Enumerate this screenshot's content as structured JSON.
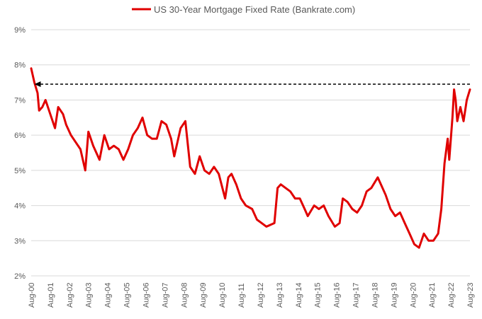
{
  "chart_data": {
    "type": "line",
    "title": "",
    "xlabel": "",
    "ylabel": "",
    "legend": {
      "position": "top-center"
    },
    "grid": {
      "horizontal": true,
      "vertical": false
    },
    "ylim": [
      2,
      9
    ],
    "y_ticks": [
      "2%",
      "3%",
      "4%",
      "5%",
      "6%",
      "7%",
      "8%",
      "9%"
    ],
    "x_range": [
      "2000-08",
      "2023-08"
    ],
    "x_ticks": [
      "Aug-00",
      "Aug-01",
      "Aug-02",
      "Aug-03",
      "Aug-04",
      "Aug-05",
      "Aug-06",
      "Aug-07",
      "Aug-08",
      "Aug-09",
      "Aug-10",
      "Aug-11",
      "Aug-12",
      "Aug-13",
      "Aug-14",
      "Aug-15",
      "Aug-16",
      "Aug-17",
      "Aug-18",
      "Aug-19",
      "Aug-20",
      "Aug-21",
      "Aug-22",
      "Aug-23"
    ],
    "series": [
      {
        "name": "US 30-Year Mortgage Fixed Rate (Bankrate.com)",
        "color": "#e00000",
        "points": [
          [
            "2000-08",
            7.9
          ],
          [
            "2000-10",
            7.5
          ],
          [
            "2000-12",
            7.2
          ],
          [
            "2001-01",
            6.7
          ],
          [
            "2001-03",
            6.8
          ],
          [
            "2001-05",
            7.0
          ],
          [
            "2001-08",
            6.6
          ],
          [
            "2001-11",
            6.2
          ],
          [
            "2002-01",
            6.8
          ],
          [
            "2002-04",
            6.6
          ],
          [
            "2002-06",
            6.3
          ],
          [
            "2002-09",
            6.0
          ],
          [
            "2002-12",
            5.8
          ],
          [
            "2003-03",
            5.6
          ],
          [
            "2003-06",
            5.0
          ],
          [
            "2003-08",
            6.1
          ],
          [
            "2003-11",
            5.7
          ],
          [
            "2004-03",
            5.3
          ],
          [
            "2004-06",
            6.0
          ],
          [
            "2004-09",
            5.6
          ],
          [
            "2004-12",
            5.7
          ],
          [
            "2005-03",
            5.6
          ],
          [
            "2005-06",
            5.3
          ],
          [
            "2005-09",
            5.6
          ],
          [
            "2005-12",
            6.0
          ],
          [
            "2006-03",
            6.2
          ],
          [
            "2006-06",
            6.5
          ],
          [
            "2006-09",
            6.0
          ],
          [
            "2006-12",
            5.9
          ],
          [
            "2007-03",
            5.9
          ],
          [
            "2007-06",
            6.4
          ],
          [
            "2007-09",
            6.3
          ],
          [
            "2007-12",
            5.9
          ],
          [
            "2008-02",
            5.4
          ],
          [
            "2008-06",
            6.2
          ],
          [
            "2008-09",
            6.4
          ],
          [
            "2008-12",
            5.1
          ],
          [
            "2009-03",
            4.9
          ],
          [
            "2009-06",
            5.4
          ],
          [
            "2009-09",
            5.0
          ],
          [
            "2009-12",
            4.9
          ],
          [
            "2010-03",
            5.1
          ],
          [
            "2010-06",
            4.9
          ],
          [
            "2010-10",
            4.2
          ],
          [
            "2010-12",
            4.8
          ],
          [
            "2011-02",
            4.9
          ],
          [
            "2011-05",
            4.6
          ],
          [
            "2011-08",
            4.2
          ],
          [
            "2011-11",
            4.0
          ],
          [
            "2012-03",
            3.9
          ],
          [
            "2012-06",
            3.6
          ],
          [
            "2012-09",
            3.5
          ],
          [
            "2012-12",
            3.4
          ],
          [
            "2013-05",
            3.5
          ],
          [
            "2013-07",
            4.5
          ],
          [
            "2013-09",
            4.6
          ],
          [
            "2013-12",
            4.5
          ],
          [
            "2014-03",
            4.4
          ],
          [
            "2014-06",
            4.2
          ],
          [
            "2014-09",
            4.2
          ],
          [
            "2014-12",
            3.9
          ],
          [
            "2015-02",
            3.7
          ],
          [
            "2015-06",
            4.0
          ],
          [
            "2015-09",
            3.9
          ],
          [
            "2015-12",
            4.0
          ],
          [
            "2016-03",
            3.7
          ],
          [
            "2016-07",
            3.4
          ],
          [
            "2016-10",
            3.5
          ],
          [
            "2016-12",
            4.2
          ],
          [
            "2017-03",
            4.1
          ],
          [
            "2017-06",
            3.9
          ],
          [
            "2017-09",
            3.8
          ],
          [
            "2017-12",
            4.0
          ],
          [
            "2018-03",
            4.4
          ],
          [
            "2018-06",
            4.5
          ],
          [
            "2018-10",
            4.8
          ],
          [
            "2018-12",
            4.6
          ],
          [
            "2019-03",
            4.3
          ],
          [
            "2019-06",
            3.9
          ],
          [
            "2019-09",
            3.7
          ],
          [
            "2019-12",
            3.8
          ],
          [
            "2020-01",
            3.7
          ],
          [
            "2020-03",
            3.5
          ],
          [
            "2020-06",
            3.2
          ],
          [
            "2020-09",
            2.9
          ],
          [
            "2020-12",
            2.8
          ],
          [
            "2021-03",
            3.2
          ],
          [
            "2021-06",
            3.0
          ],
          [
            "2021-09",
            3.0
          ],
          [
            "2021-12",
            3.2
          ],
          [
            "2022-02",
            3.9
          ],
          [
            "2022-04",
            5.2
          ],
          [
            "2022-06",
            5.9
          ],
          [
            "2022-07",
            5.3
          ],
          [
            "2022-09",
            6.5
          ],
          [
            "2022-10",
            7.3
          ],
          [
            "2022-11",
            7.0
          ],
          [
            "2022-12",
            6.4
          ],
          [
            "2023-02",
            6.8
          ],
          [
            "2023-04",
            6.4
          ],
          [
            "2023-06",
            7.0
          ],
          [
            "2023-08",
            7.3
          ]
        ]
      }
    ],
    "annotations": [
      {
        "type": "dashed-arrow",
        "from": [
          "2023-08",
          7.45
        ],
        "to": [
          "2000-10",
          7.45
        ],
        "color": "#000000"
      }
    ]
  }
}
